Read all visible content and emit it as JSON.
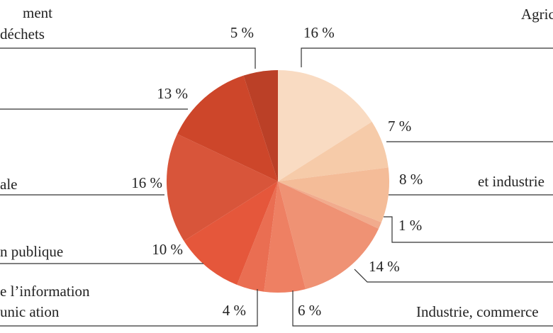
{
  "chart_data": {
    "type": "pie",
    "categories": [
      "Agric",
      null,
      "et industrie",
      null,
      null,
      "Industrie, commerce",
      [
        "e l’information",
        "unic   ation"
      ],
      "n publique",
      "ale",
      null,
      [
        "ment",
        "déchets"
      ]
    ],
    "values": [
      16,
      7,
      8,
      1,
      14,
      6,
      4,
      10,
      16,
      13,
      5
    ],
    "value_labels": [
      "16 %",
      "7 %",
      "8 %",
      "1 %",
      "14 %",
      "6 %",
      "4 %",
      "10 %",
      "16 %",
      "13 %",
      "5 %"
    ],
    "colors": [
      "#f9dbc2",
      "#f6cba9",
      "#f4bc98",
      "#f1ab8d",
      "#ef9274",
      "#ee8063",
      "#ea6e52",
      "#e5573b",
      "#d8553a",
      "#cd462a",
      "#bb4027"
    ]
  }
}
